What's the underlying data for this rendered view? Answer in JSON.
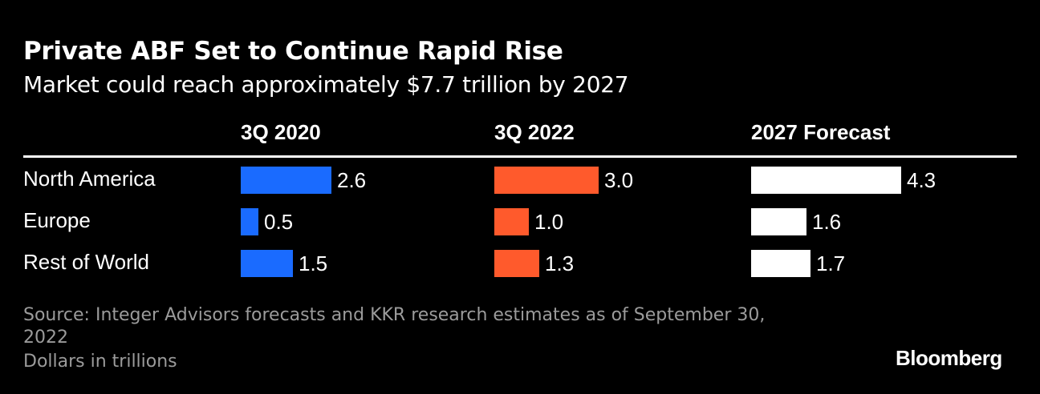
{
  "chart_data": {
    "type": "bar",
    "title": "Private ABF Set to Continue Rapid Rise",
    "subtitle": "Market could reach approximately $7.7 trillion by 2027",
    "categories": [
      "North America",
      "Europe",
      "Rest of World"
    ],
    "series": [
      {
        "name": "3Q 2020",
        "color": "#1a6bff",
        "values": [
          2.6,
          0.5,
          1.5
        ]
      },
      {
        "name": "3Q 2022",
        "color": "#ff5a2c",
        "values": [
          3.0,
          1.0,
          1.3
        ]
      },
      {
        "name": "2027 Forecast",
        "color": "#ffffff",
        "values": [
          4.3,
          1.6,
          1.7
        ]
      }
    ],
    "value_labels": [
      [
        "2.6",
        "0.5",
        "1.5"
      ],
      [
        "3.0",
        "1.0",
        "1.3"
      ],
      [
        "4.3",
        "1.6",
        "1.7"
      ]
    ],
    "orientation": "horizontal",
    "layout": "small-multiples"
  },
  "source_line1": "Source: Integer Advisors forecasts and KKR research estimates as of September 30,",
  "source_line2": "2022",
  "note": "Dollars in trillions",
  "brand": "Bloomberg"
}
